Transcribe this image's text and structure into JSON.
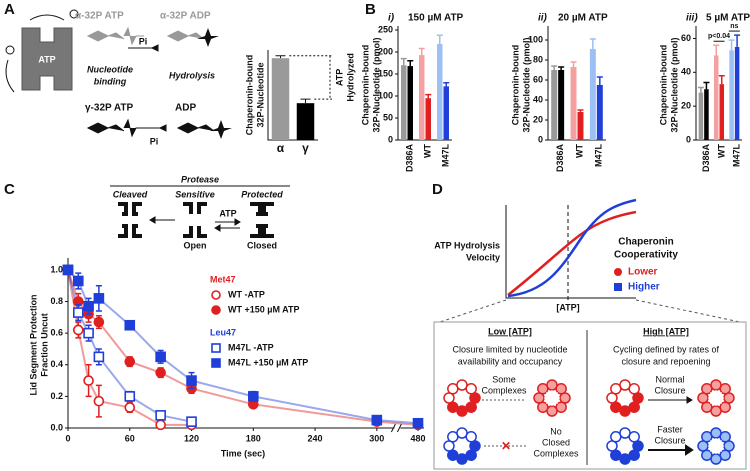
{
  "panel_labels": [
    "A",
    "B",
    "C",
    "D"
  ],
  "panel_a": {
    "alpha_atp": "α-32P ATP",
    "alpha_adp": "α-32P ADP",
    "atp": "ATP",
    "pi_top": "Pi",
    "binding": [
      "Nucleotide",
      "binding"
    ],
    "hydrolysis": "Hydrolysis",
    "gamma_atp": "γ-32P ATP",
    "adp": "ADP",
    "pi_bottom": "Pi"
  },
  "panel_c_diagram": {
    "protease": "Protease",
    "cleaved": "Cleaved",
    "sensitive": "Sensitive",
    "protected": "Protected",
    "atp": "ATP",
    "open": "Open",
    "closed": "Closed"
  },
  "panel_d": {
    "y_label": [
      "ATP Hydrolysis",
      "Velocity"
    ],
    "x_label": "[ATP]",
    "legend_title": [
      "Chaperonin",
      "Cooperativity"
    ],
    "legend": [
      {
        "label": "Lower",
        "color": "#e02020"
      },
      {
        "label": "Higher",
        "color": "#1f3fd8"
      }
    ],
    "low": {
      "title": "Low [ATP]",
      "text": [
        "Closure limited by nucleotide",
        "availability and occupancy"
      ],
      "top_arrow": [
        "Some",
        "Complexes"
      ],
      "bottom_arrow": [
        "No",
        "Closed",
        "Complexes"
      ]
    },
    "high": {
      "title": "High [ATP]",
      "text": [
        "Cycling defined by rates of",
        "closure and repoening"
      ],
      "top_arrow": [
        "Normal",
        "Closure"
      ],
      "bottom_arrow": [
        "Faster",
        "Closure"
      ]
    }
  },
  "chart_data": [
    {
      "type": "bar",
      "y_label": [
        "Chaperonin-bound",
        "32P-Nucleotide"
      ],
      "categories": [
        "α",
        "γ"
      ],
      "values": [
        1.0,
        0.45
      ],
      "errors": [
        0.03,
        0.05
      ],
      "colors": [
        "#9a9a9a",
        "#000000"
      ],
      "ylim": [
        0,
        1.1
      ],
      "annotation": [
        "ATP",
        "Hydrolyzed"
      ]
    },
    {
      "type": "grouped-bar",
      "panel": "i)",
      "title": "150 µM ATP",
      "y_label": [
        "Chaperonin-bound",
        "32P-Nucleotide (pmol)"
      ],
      "categories": [
        "D386A",
        "WT",
        "M47L"
      ],
      "series": [
        {
          "colors": [
            "#9a9a9a",
            "#f4a0a0",
            "#9cc0f4"
          ],
          "values": [
            170,
            193,
            218
          ],
          "errors": [
            15,
            15,
            20
          ]
        },
        {
          "colors": [
            "#000000",
            "#e02020",
            "#1f3fd8"
          ],
          "values": [
            168,
            95,
            122
          ],
          "errors": [
            12,
            8,
            8
          ]
        }
      ],
      "ylim": [
        0,
        250
      ],
      "yticks": [
        0,
        50,
        100,
        150,
        200,
        250
      ]
    },
    {
      "type": "grouped-bar",
      "panel": "ii)",
      "title": "20 µM ATP",
      "y_label": [
        "Chaperonin-bound",
        "32P-Nucleotide (pmol)"
      ],
      "categories": [
        "D386A",
        "WT",
        "M47L"
      ],
      "series": [
        {
          "colors": [
            "#9a9a9a",
            "#f4a0a0",
            "#9cc0f4"
          ],
          "values": [
            70,
            73,
            91
          ],
          "errors": [
            4,
            5,
            10
          ]
        },
        {
          "colors": [
            "#000000",
            "#e02020",
            "#1f3fd8"
          ],
          "values": [
            70,
            28,
            55
          ],
          "errors": [
            3,
            2,
            8
          ]
        }
      ],
      "ylim": [
        0,
        110
      ],
      "yticks": [
        0,
        20,
        40,
        60,
        80,
        100
      ]
    },
    {
      "type": "grouped-bar",
      "panel": "iii)",
      "title": "5 µM ATP",
      "y_label": [
        "Chaperonin-bound",
        "32P-Nucleotide (pmol)"
      ],
      "categories": [
        "D386A",
        "WT",
        "M47L"
      ],
      "series": [
        {
          "colors": [
            "#9a9a9a",
            "#f4a0a0",
            "#9cc0f4"
          ],
          "values": [
            28,
            50,
            53
          ],
          "errors": [
            3,
            6,
            6
          ]
        },
        {
          "colors": [
            "#000000",
            "#e02020",
            "#1f3fd8"
          ],
          "values": [
            30,
            33,
            55
          ],
          "errors": [
            4,
            5,
            7
          ]
        }
      ],
      "ylim": [
        0,
        65
      ],
      "yticks": [
        0,
        20,
        40,
        60
      ],
      "annotations": [
        "p<0.04",
        "ns"
      ]
    },
    {
      "type": "scatter",
      "y_label": [
        "Lid Segment Protection",
        "Fraction Uncut"
      ],
      "x_label": "Time (sec)",
      "xlim": [
        0,
        480
      ],
      "xticks": [
        0,
        60,
        120,
        180,
        240,
        300,
        480
      ],
      "ylim": [
        0,
        1.05
      ],
      "yticks": [
        {
          "value": 0,
          "label": "0.0"
        },
        {
          "value": 0.2,
          "label": "0.2"
        },
        {
          "value": 0.4,
          "label": "0.4"
        },
        {
          "value": 0.6,
          "label": "0.6"
        },
        {
          "value": 0.8,
          "label": "0.8"
        },
        {
          "value": 1.0,
          "label": "1.0"
        }
      ],
      "legend_groups": [
        {
          "label": "Met47",
          "color": "#e02020"
        },
        {
          "label": "Leu47",
          "color": "#1f3fd8"
        }
      ],
      "series": [
        {
          "name": "WT -ATP",
          "color": "#e02020",
          "marker": "circle-open",
          "x": [
            0,
            10,
            20,
            30,
            60,
            90,
            120
          ],
          "values": [
            1.0,
            0.62,
            0.3,
            0.17,
            0.13,
            0.02,
            0.02
          ],
          "errors": [
            0,
            0.05,
            0.1,
            0.1,
            0.03,
            0.02,
            0.01
          ]
        },
        {
          "name": "WT +150 µM ATP",
          "color": "#e02020",
          "marker": "circle",
          "x": [
            0,
            10,
            20,
            30,
            60,
            90,
            120,
            180,
            300,
            480
          ],
          "values": [
            1.0,
            0.8,
            0.72,
            0.67,
            0.42,
            0.35,
            0.25,
            0.15,
            0.04,
            0.02
          ],
          "errors": [
            0,
            0.05,
            0.05,
            0.04,
            0.03,
            0.03,
            0.03,
            0.02,
            0.01,
            0.01
          ]
        },
        {
          "name": "M47L -ATP",
          "color": "#1f3fd8",
          "marker": "square-open",
          "x": [
            0,
            10,
            20,
            30,
            60,
            90,
            120
          ],
          "values": [
            1.0,
            0.73,
            0.6,
            0.45,
            0.2,
            0.08,
            0.04
          ],
          "errors": [
            0,
            0.05,
            0.05,
            0.05,
            0.03,
            0.02,
            0.01
          ]
        },
        {
          "name": "M47L +150 µM ATP",
          "color": "#1f3fd8",
          "marker": "square",
          "x": [
            0,
            10,
            20,
            30,
            60,
            90,
            120,
            180,
            300,
            480
          ],
          "values": [
            1.0,
            0.93,
            0.77,
            0.82,
            0.65,
            0.45,
            0.3,
            0.2,
            0.05,
            0.03
          ],
          "errors": [
            0,
            0.05,
            0.05,
            0.08,
            0.02,
            0.04,
            0.05,
            0.03,
            0.01,
            0.01
          ]
        }
      ]
    }
  ]
}
